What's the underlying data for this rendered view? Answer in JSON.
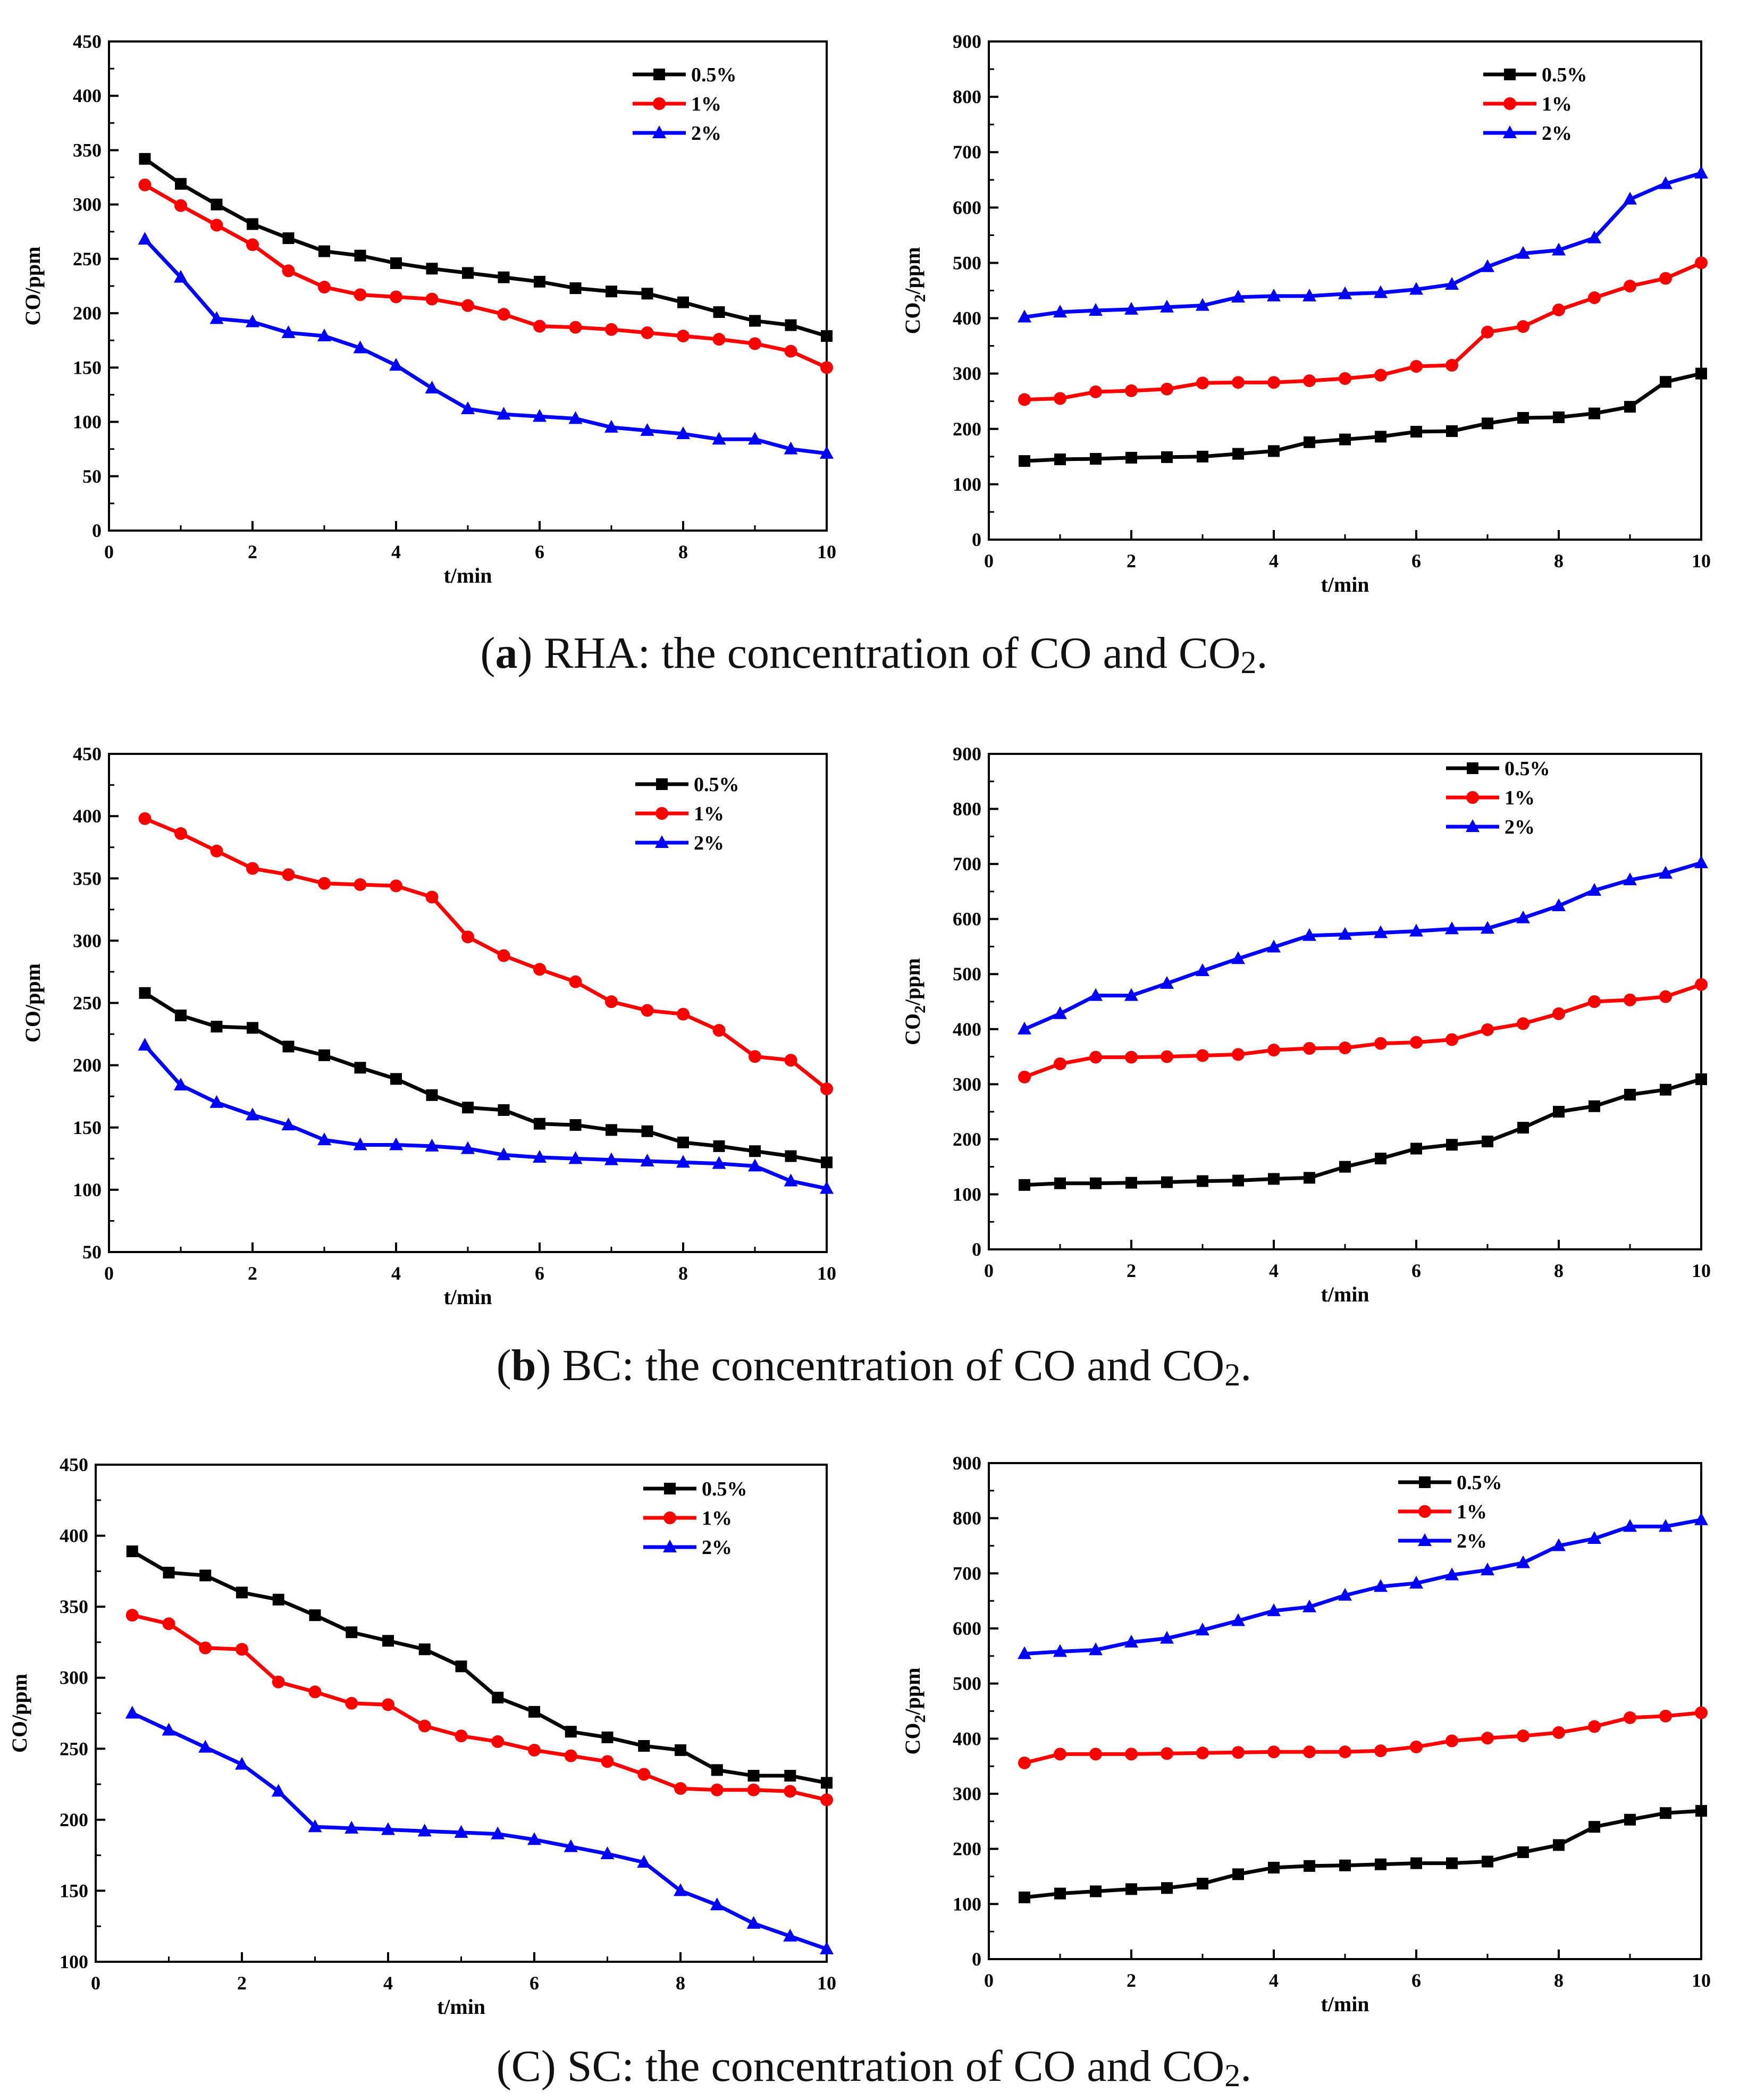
{
  "colors": {
    "series_0_5": "#000000",
    "series_1": "#ff0000",
    "series_2": "#0000ff"
  },
  "x": [
    0.5,
    1,
    1.5,
    2,
    2.5,
    3,
    3.5,
    4,
    4.5,
    5,
    5.5,
    6,
    6.5,
    7,
    7.5,
    8,
    8.5,
    9,
    9.5,
    10
  ],
  "panels": [
    {
      "label": "a",
      "label_style": "bold",
      "caption_text": "RHA: the concentration of CO and CO",
      "caption_sub": "2",
      "caption_end": "."
    },
    {
      "label": "b",
      "label_style": "bold",
      "caption_text": "BC: the concentration of CO and CO",
      "caption_sub": "2",
      "caption_end": "."
    },
    {
      "label": "C",
      "label_style": "plain",
      "caption_text": "SC: the concentration of CO and CO",
      "caption_sub": "2",
      "caption_end": "."
    }
  ],
  "chart_data": [
    {
      "id": "a-co",
      "type": "line",
      "title": "",
      "xlabel": "t/min",
      "ylabel": "CO/ppm",
      "xlim": [
        0,
        10
      ],
      "ylim": [
        0,
        450
      ],
      "xticks": [
        0,
        2,
        4,
        6,
        8,
        10
      ],
      "yticks": [
        0,
        50,
        100,
        150,
        200,
        250,
        300,
        350,
        400,
        450
      ],
      "legend_position": "top-right",
      "series": [
        {
          "name": "0.5%",
          "marker": "square",
          "values": [
            342,
            319,
            300,
            282,
            269,
            257,
            253,
            246,
            241,
            237,
            233,
            229,
            223,
            220,
            218,
            210,
            201,
            193,
            189,
            179
          ]
        },
        {
          "name": "1%",
          "marker": "circle",
          "values": [
            318,
            299,
            281,
            263,
            239,
            224,
            217,
            215,
            213,
            207,
            199,
            188,
            187,
            185,
            182,
            179,
            176,
            172,
            165,
            150
          ]
        },
        {
          "name": "2%",
          "marker": "triangle",
          "values": [
            268,
            233,
            195,
            192,
            182,
            179,
            168,
            152,
            131,
            112,
            107,
            105,
            103,
            95,
            92,
            89,
            84,
            84,
            75,
            71
          ]
        }
      ]
    },
    {
      "id": "a-co2",
      "type": "line",
      "title": "",
      "xlabel": "t/min",
      "ylabel": "CO",
      "ylabel_sub": "2",
      "ylabel_end": "/ppm",
      "xlim": [
        0,
        10
      ],
      "ylim": [
        0,
        900
      ],
      "xticks": [
        0,
        2,
        4,
        6,
        8,
        10
      ],
      "yticks": [
        0,
        100,
        200,
        300,
        400,
        500,
        600,
        700,
        800,
        900
      ],
      "legend_position": "top-right",
      "series": [
        {
          "name": "0.5%",
          "marker": "square",
          "values": [
            142,
            145,
            146,
            148,
            149,
            150,
            155,
            160,
            176,
            181,
            186,
            195,
            196,
            210,
            220,
            221,
            228,
            240,
            285,
            300
          ]
        },
        {
          "name": "1%",
          "marker": "circle",
          "values": [
            253,
            255,
            267,
            269,
            272,
            283,
            284,
            284,
            287,
            291,
            297,
            313,
            315,
            375,
            385,
            415,
            437,
            458,
            472,
            500
          ]
        },
        {
          "name": "2%",
          "marker": "triangle",
          "values": [
            402,
            411,
            414,
            416,
            420,
            423,
            438,
            440,
            440,
            444,
            446,
            452,
            461,
            493,
            517,
            523,
            545,
            615,
            643,
            662
          ]
        }
      ]
    },
    {
      "id": "b-co",
      "type": "line",
      "title": "",
      "xlabel": "t/min",
      "ylabel": "CO/ppm",
      "xlim": [
        0,
        10
      ],
      "ylim": [
        50,
        450
      ],
      "xticks": [
        0,
        2,
        4,
        6,
        8,
        10
      ],
      "yticks": [
        50,
        100,
        150,
        200,
        250,
        300,
        350,
        400,
        450
      ],
      "legend_position": "top-right",
      "series": [
        {
          "name": "0.5%",
          "marker": "square",
          "values": [
            258,
            240,
            231,
            230,
            215,
            208,
            198,
            189,
            176,
            166,
            164,
            153,
            152,
            148,
            147,
            138,
            135,
            131,
            127,
            122
          ]
        },
        {
          "name": "1%",
          "marker": "circle",
          "values": [
            398,
            386,
            372,
            358,
            353,
            346,
            345,
            344,
            335,
            303,
            288,
            277,
            267,
            251,
            244,
            241,
            228,
            207,
            204,
            181
          ]
        },
        {
          "name": "2%",
          "marker": "triangle",
          "values": [
            216,
            184,
            170,
            160,
            152,
            140,
            136,
            136,
            135,
            133,
            128,
            126,
            125,
            124,
            123,
            122,
            121,
            119,
            107,
            101
          ]
        }
      ]
    },
    {
      "id": "b-co2",
      "type": "line",
      "title": "",
      "xlabel": "t/min",
      "ylabel": "CO",
      "ylabel_sub": "2",
      "ylabel_end": "/ppm",
      "xlim": [
        0,
        10
      ],
      "ylim": [
        0,
        900
      ],
      "xticks": [
        0,
        2,
        4,
        6,
        8,
        10
      ],
      "yticks": [
        0,
        100,
        200,
        300,
        400,
        500,
        600,
        700,
        800,
        900
      ],
      "legend_position": "top-right",
      "series": [
        {
          "name": "0.5%",
          "marker": "square",
          "values": [
            117,
            120,
            120,
            121,
            122,
            124,
            125,
            128,
            130,
            150,
            165,
            183,
            190,
            196,
            221,
            250,
            260,
            281,
            290,
            309
          ]
        },
        {
          "name": "1%",
          "marker": "circle",
          "values": [
            313,
            337,
            349,
            349,
            350,
            352,
            354,
            362,
            365,
            366,
            374,
            376,
            381,
            399,
            410,
            428,
            450,
            453,
            459,
            481
          ]
        },
        {
          "name": "2%",
          "marker": "triangle",
          "values": [
            400,
            428,
            461,
            461,
            483,
            506,
            528,
            549,
            570,
            572,
            575,
            578,
            582,
            583,
            602,
            624,
            652,
            671,
            683,
            702
          ]
        }
      ]
    },
    {
      "id": "c-co",
      "type": "line",
      "title": "",
      "xlabel": "t/min",
      "ylabel": "CO/ppm",
      "xlim": [
        0,
        10
      ],
      "ylim": [
        100,
        450
      ],
      "xticks": [
        0,
        2,
        4,
        6,
        8,
        10
      ],
      "yticks": [
        100,
        150,
        200,
        250,
        300,
        350,
        400,
        450
      ],
      "legend_position": "top-right",
      "series": [
        {
          "name": "0.5%",
          "marker": "square",
          "values": [
            389,
            374,
            372,
            360,
            355,
            344,
            332,
            326,
            320,
            308,
            286,
            276,
            262,
            258,
            252,
            249,
            235,
            231,
            231,
            226
          ]
        },
        {
          "name": "1%",
          "marker": "circle",
          "values": [
            344,
            338,
            321,
            320,
            297,
            290,
            282,
            281,
            266,
            259,
            255,
            249,
            245,
            241,
            232,
            222,
            221,
            221,
            220,
            214
          ]
        },
        {
          "name": "2%",
          "marker": "triangle",
          "values": [
            275,
            263,
            251,
            239,
            220,
            195,
            194,
            193,
            192,
            191,
            190,
            186,
            181,
            176,
            170,
            150,
            140,
            127,
            118,
            109
          ]
        }
      ]
    },
    {
      "id": "c-co2",
      "type": "line",
      "title": "",
      "xlabel": "t/min",
      "ylabel": "CO",
      "ylabel_sub": "2",
      "ylabel_end": "/ppm",
      "xlim": [
        0,
        10
      ],
      "ylim": [
        0,
        900
      ],
      "xticks": [
        0,
        2,
        4,
        6,
        8,
        10
      ],
      "yticks": [
        0,
        100,
        200,
        300,
        400,
        500,
        600,
        700,
        800,
        900
      ],
      "legend_position": "top-right",
      "series": [
        {
          "name": "0.5%",
          "marker": "square",
          "values": [
            112,
            119,
            123,
            127,
            129,
            137,
            154,
            166,
            169,
            170,
            172,
            174,
            174,
            177,
            194,
            207,
            240,
            253,
            265,
            269
          ]
        },
        {
          "name": "1%",
          "marker": "circle",
          "values": [
            356,
            372,
            372,
            372,
            373,
            374,
            375,
            376,
            376,
            376,
            378,
            385,
            396,
            401,
            405,
            411,
            422,
            438,
            441,
            447
          ]
        },
        {
          "name": "2%",
          "marker": "triangle",
          "values": [
            554,
            558,
            561,
            575,
            582,
            597,
            614,
            632,
            639,
            660,
            676,
            682,
            697,
            706,
            719,
            750,
            763,
            785,
            785,
            797
          ]
        }
      ]
    }
  ]
}
